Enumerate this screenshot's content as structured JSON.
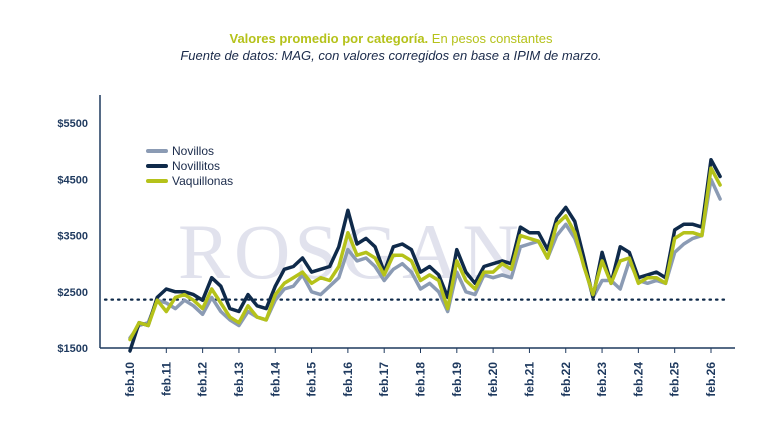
{
  "chart_data": {
    "type": "line",
    "title_bold": "Valores promedio por categoría.",
    "title_rest": " En pesos constantes",
    "subtitle": "Fuente de datos: MAG, con valores corregidos en base a IPIM de marzo.",
    "watermark": "ROSGAN",
    "ylim": [
      1500,
      6000
    ],
    "yticks": [
      1500,
      2500,
      3500,
      4500,
      5500
    ],
    "ytick_labels": [
      "$1500",
      "$2500",
      "$3500",
      "$4500",
      "$5500"
    ],
    "xticks": [
      10,
      11,
      12,
      13,
      14,
      15,
      16,
      17,
      18,
      19,
      20,
      21,
      22,
      23,
      24,
      25,
      26
    ],
    "xtick_labels": [
      "feb.10",
      "feb.11",
      "feb.12",
      "feb.13",
      "feb.14",
      "feb.15",
      "feb.16",
      "feb.17",
      "feb.18",
      "feb.19",
      "feb.20",
      "feb.21",
      "feb.22",
      "feb.23",
      "feb.24",
      "feb.25",
      "feb.26"
    ],
    "xlim": [
      10,
      26.5
    ],
    "reference_line": 2360,
    "legend_position": "top-left",
    "x": [
      10.0,
      10.25,
      10.5,
      10.75,
      11.0,
      11.25,
      11.5,
      11.75,
      12.0,
      12.25,
      12.5,
      12.75,
      13.0,
      13.25,
      13.5,
      13.75,
      14.0,
      14.25,
      14.5,
      14.75,
      15.0,
      15.25,
      15.5,
      15.75,
      16.0,
      16.25,
      16.5,
      16.75,
      17.0,
      17.25,
      17.5,
      17.75,
      18.0,
      18.25,
      18.5,
      18.75,
      19.0,
      19.25,
      19.5,
      19.75,
      20.0,
      20.25,
      20.5,
      20.75,
      21.0,
      21.25,
      21.5,
      21.75,
      22.0,
      22.25,
      22.5,
      22.75,
      23.0,
      23.25,
      23.5,
      23.75,
      24.0,
      24.25,
      24.5,
      24.75,
      25.0,
      25.25,
      25.5,
      25.75,
      26.0,
      26.25
    ],
    "series": [
      {
        "name": "Novillos",
        "color": "#8b9bb4",
        "values": [
          1680,
          1900,
          1950,
          2350,
          2300,
          2200,
          2350,
          2250,
          2100,
          2400,
          2150,
          2000,
          1900,
          2150,
          2050,
          2000,
          2350,
          2550,
          2600,
          2800,
          2500,
          2450,
          2600,
          2750,
          3250,
          3050,
          3100,
          2950,
          2700,
          2900,
          3000,
          2850,
          2550,
          2650,
          2500,
          2150,
          2850,
          2500,
          2450,
          2800,
          2750,
          2800,
          2750,
          3300,
          3350,
          3400,
          3100,
          3500,
          3700,
          3450,
          3000,
          2400,
          2700,
          2700,
          2550,
          3050,
          2700,
          2650,
          2700,
          2650,
          3200,
          3350,
          3450,
          3500,
          4500,
          4150
        ]
      },
      {
        "name": "Novillitos",
        "color": "#0f2a4a",
        "values": [
          1450,
          1950,
          1900,
          2400,
          2550,
          2500,
          2500,
          2450,
          2350,
          2750,
          2600,
          2200,
          2150,
          2450,
          2250,
          2200,
          2600,
          2900,
          2950,
          3100,
          2850,
          2900,
          2950,
          3300,
          3950,
          3350,
          3450,
          3300,
          2850,
          3300,
          3350,
          3250,
          2850,
          2950,
          2800,
          2400,
          3250,
          2850,
          2650,
          2950,
          3000,
          3050,
          3000,
          3650,
          3550,
          3550,
          3250,
          3800,
          4000,
          3750,
          3100,
          2400,
          3200,
          2650,
          3300,
          3200,
          2750,
          2800,
          2850,
          2750,
          3600,
          3700,
          3700,
          3650,
          4850,
          4550
        ]
      },
      {
        "name": "Vaquillonas",
        "color": "#b5c21a",
        "values": [
          1650,
          1950,
          1900,
          2350,
          2150,
          2400,
          2450,
          2350,
          2200,
          2550,
          2300,
          2050,
          1950,
          2250,
          2050,
          2000,
          2450,
          2650,
          2750,
          2850,
          2650,
          2750,
          2700,
          2950,
          3550,
          3150,
          3200,
          3100,
          2800,
          3150,
          3150,
          3050,
          2700,
          2800,
          2700,
          2200,
          3050,
          2700,
          2550,
          2850,
          2850,
          3000,
          2900,
          3500,
          3450,
          3400,
          3100,
          3700,
          3850,
          3550,
          2950,
          2450,
          3050,
          2650,
          3050,
          3100,
          2650,
          2750,
          2750,
          2650,
          3450,
          3550,
          3550,
          3500,
          4700,
          4400
        ]
      }
    ]
  }
}
